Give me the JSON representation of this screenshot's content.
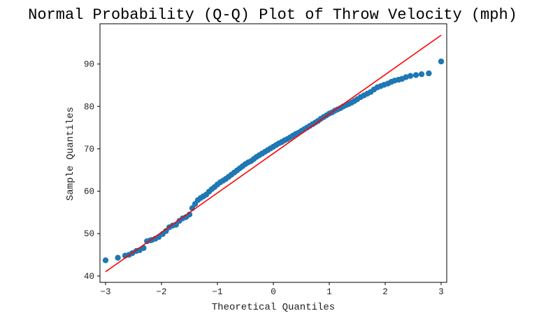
{
  "chart_data": {
    "type": "scatter",
    "title": "Normal Probability (Q-Q) Plot of Throw Velocity (mph)",
    "xlabel": "Theoretical Quantiles",
    "ylabel": "Sample Quantiles",
    "xlim": [
      -3.1,
      3.1
    ],
    "ylim": [
      38.5,
      99.5
    ],
    "xticks": [
      -3,
      -2,
      -1,
      0,
      1,
      2,
      3
    ],
    "yticks": [
      40,
      50,
      60,
      70,
      80,
      90
    ],
    "grid": false,
    "colors": {
      "points": "#1f77b4",
      "line": "#ff0000"
    },
    "series": [
      {
        "kind": "points",
        "x": [
          -3.0,
          -2.78,
          -2.65,
          -2.58,
          -2.52,
          -2.45,
          -2.39,
          -2.32,
          -2.26,
          -2.2,
          -2.17,
          -2.11,
          -2.05,
          -1.98,
          -1.92,
          -1.86,
          -1.8,
          -1.74,
          -1.68,
          -1.62,
          -1.56,
          -1.5,
          -1.45,
          -1.4,
          -1.35,
          -1.3,
          -1.25,
          -1.2,
          -1.15,
          -1.1,
          -1.05,
          -1.0,
          -0.95,
          -0.9,
          -0.85,
          -0.8,
          -0.75,
          -0.7,
          -0.65,
          -0.6,
          -0.55,
          -0.5,
          -0.45,
          -0.4,
          -0.35,
          -0.3,
          -0.25,
          -0.2,
          -0.15,
          -0.1,
          -0.05,
          0.0,
          0.05,
          0.1,
          0.15,
          0.2,
          0.25,
          0.3,
          0.35,
          0.4,
          0.45,
          0.5,
          0.55,
          0.6,
          0.65,
          0.7,
          0.75,
          0.8,
          0.85,
          0.9,
          0.95,
          1.0,
          1.05,
          1.1,
          1.15,
          1.2,
          1.25,
          1.3,
          1.35,
          1.4,
          1.45,
          1.5,
          1.56,
          1.62,
          1.68,
          1.74,
          1.8,
          1.86,
          1.92,
          1.98,
          2.05,
          2.11,
          2.17,
          2.24,
          2.3,
          2.37,
          2.45,
          2.55,
          2.65,
          2.78,
          3.0
        ],
        "y": [
          43.7,
          44.3,
          44.8,
          45.0,
          45.4,
          45.9,
          46.1,
          46.6,
          48.2,
          48.4,
          48.5,
          48.8,
          49.2,
          49.9,
          50.6,
          51.5,
          51.9,
          52.1,
          53.0,
          53.6,
          53.9,
          54.5,
          56.0,
          57.0,
          57.9,
          58.4,
          58.8,
          59.2,
          59.9,
          60.5,
          61.0,
          61.6,
          62.1,
          62.5,
          62.9,
          63.4,
          63.9,
          64.4,
          64.9,
          65.4,
          65.9,
          66.4,
          66.8,
          67.1,
          67.6,
          68.1,
          68.5,
          68.9,
          69.3,
          69.7,
          70.1,
          70.5,
          70.9,
          71.3,
          71.6,
          72.0,
          72.3,
          72.7,
          73.1,
          73.5,
          73.8,
          74.2,
          74.6,
          75.0,
          75.4,
          75.8,
          76.2,
          76.6,
          77.1,
          77.5,
          77.9,
          78.3,
          78.6,
          79.0,
          79.3,
          79.6,
          80.0,
          80.3,
          80.6,
          80.9,
          81.3,
          81.7,
          82.2,
          82.6,
          83.0,
          83.4,
          84.0,
          84.5,
          84.8,
          85.1,
          85.4,
          85.8,
          86.1,
          86.3,
          86.5,
          86.9,
          87.2,
          87.4,
          87.6,
          87.8,
          90.6
        ]
      },
      {
        "kind": "line",
        "x": [
          -3.0,
          3.0
        ],
        "y": [
          41.0,
          96.8
        ]
      }
    ]
  }
}
